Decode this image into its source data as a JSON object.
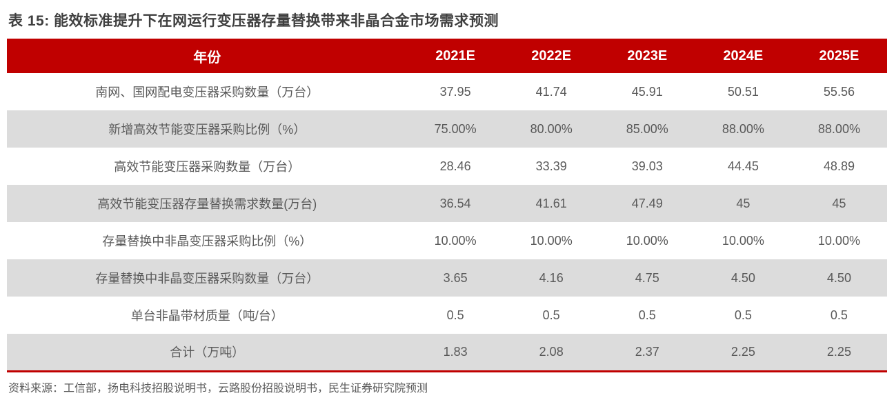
{
  "title": "表 15: 能效标准提升下在网运行变压器存量替换带来非晶合金市场需求预测",
  "source": "资料来源：工信部，扬电科技招股说明书，云路股份招股说明书，民生证券研究院预测",
  "colors": {
    "header_bg": "#c00000",
    "header_text": "#ffffff",
    "stripe_bg": "#dcdcdc",
    "body_text": "#595959",
    "title_text": "#3f3f3f",
    "accent_line": "#c00000"
  },
  "table": {
    "header": {
      "label": "年份",
      "years": [
        "2021E",
        "2022E",
        "2023E",
        "2024E",
        "2025E"
      ]
    },
    "rows": [
      {
        "label": "南网、国网配电变压器采购数量（万台）",
        "values": [
          "37.95",
          "41.74",
          "45.91",
          "50.51",
          "55.56"
        ]
      },
      {
        "label": "新增高效节能变压器采购比例（%）",
        "values": [
          "75.00%",
          "80.00%",
          "85.00%",
          "88.00%",
          "88.00%"
        ]
      },
      {
        "label": "高效节能变压器采购数量（万台）",
        "values": [
          "28.46",
          "33.39",
          "39.03",
          "44.45",
          "48.89"
        ]
      },
      {
        "label": "高效节能变压器存量替换需求数量(万台)",
        "values": [
          "36.54",
          "41.61",
          "47.49",
          "45",
          "45"
        ]
      },
      {
        "label": "存量替换中非晶变压器采购比例（%）",
        "values": [
          "10.00%",
          "10.00%",
          "10.00%",
          "10.00%",
          "10.00%"
        ]
      },
      {
        "label": "存量替换中非晶变压器采购数量（万台）",
        "values": [
          "3.65",
          "4.16",
          "4.75",
          "4.50",
          "4.50"
        ]
      },
      {
        "label": "单台非晶带材质量（吨/台）",
        "values": [
          "0.5",
          "0.5",
          "0.5",
          "0.5",
          "0.5"
        ]
      },
      {
        "label": "合计（万吨）",
        "values": [
          "1.83",
          "2.08",
          "2.37",
          "2.25",
          "2.25"
        ]
      }
    ]
  },
  "chart_data": {
    "type": "table",
    "title": "表 15: 能效标准提升下在网运行变压器存量替换带来非晶合金市场需求预测",
    "columns": [
      "年份",
      "2021E",
      "2022E",
      "2023E",
      "2024E",
      "2025E"
    ],
    "rows": [
      [
        "南网、国网配电变压器采购数量（万台）",
        37.95,
        41.74,
        45.91,
        50.51,
        55.56
      ],
      [
        "新增高效节能变压器采购比例（%）",
        "75.00%",
        "80.00%",
        "85.00%",
        "88.00%",
        "88.00%"
      ],
      [
        "高效节能变压器采购数量（万台）",
        28.46,
        33.39,
        39.03,
        44.45,
        48.89
      ],
      [
        "高效节能变压器存量替换需求数量(万台)",
        36.54,
        41.61,
        47.49,
        45,
        45
      ],
      [
        "存量替换中非晶变压器采购比例（%）",
        "10.00%",
        "10.00%",
        "10.00%",
        "10.00%",
        "10.00%"
      ],
      [
        "存量替换中非晶变压器采购数量（万台）",
        3.65,
        4.16,
        4.75,
        4.5,
        4.5
      ],
      [
        "单台非晶带材质量（吨/台）",
        0.5,
        0.5,
        0.5,
        0.5,
        0.5
      ],
      [
        "合计（万吨）",
        1.83,
        2.08,
        2.37,
        2.25,
        2.25
      ]
    ],
    "source_note": "资料来源：工信部，扬电科技招股说明书，云路股份招股说明书，民生证券研究院预测"
  }
}
